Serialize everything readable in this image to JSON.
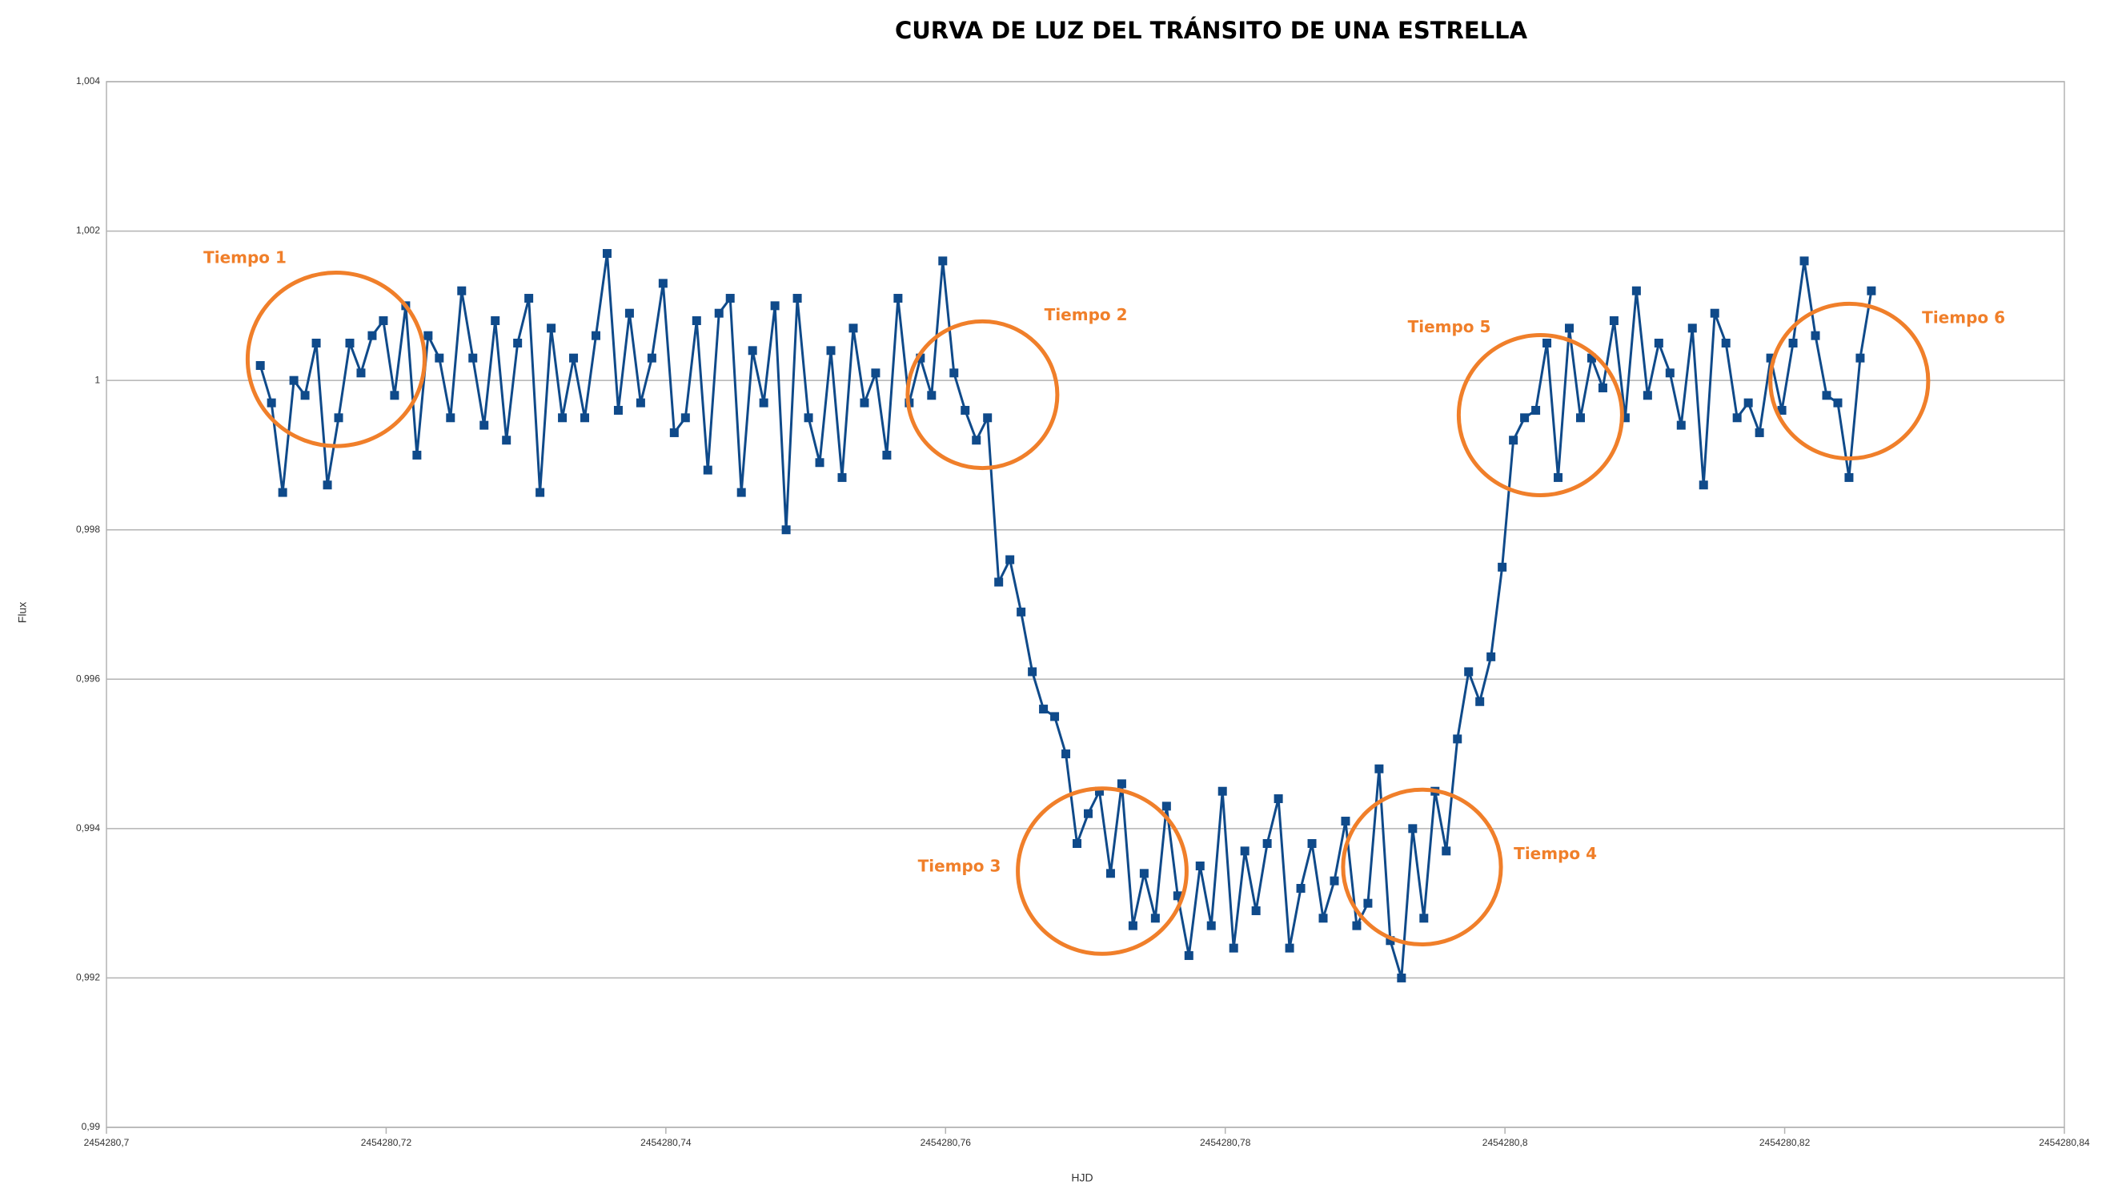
{
  "chart_data": {
    "type": "line",
    "title": "CURVA DE LUZ DEL TRÁNSITO DE UNA ESTRELLA",
    "x_label": "HJD",
    "y_label": "Flux",
    "x": [
      2454280.711,
      2454280.7118,
      2454280.7126,
      2454280.7134,
      2454280.7142,
      2454280.715,
      2454280.7158,
      2454280.7166,
      2454280.7174,
      2454280.7182,
      2454280.719,
      2454280.7198,
      2454280.7206,
      2454280.7214,
      2454280.7222,
      2454280.723,
      2454280.7238,
      2454280.7246,
      2454280.7254,
      2454280.7262,
      2454280.727,
      2454280.7278,
      2454280.7286,
      2454280.7294,
      2454280.7302,
      2454280.731,
      2454280.7318,
      2454280.7326,
      2454280.7334,
      2454280.7342,
      2454280.735,
      2454280.7358,
      2454280.7366,
      2454280.7374,
      2454280.7382,
      2454280.739,
      2454280.7398,
      2454280.7406,
      2454280.7414,
      2454280.7422,
      2454280.743,
      2454280.7438,
      2454280.7446,
      2454280.7454,
      2454280.7462,
      2454280.747,
      2454280.7478,
      2454280.7486,
      2454280.7494,
      2454280.7502,
      2454280.751,
      2454280.7518,
      2454280.7526,
      2454280.7534,
      2454280.7542,
      2454280.755,
      2454280.7558,
      2454280.7566,
      2454280.7574,
      2454280.7582,
      2454280.759,
      2454280.7598,
      2454280.7606,
      2454280.7614,
      2454280.7622,
      2454280.763,
      2454280.7638,
      2454280.7646,
      2454280.7654,
      2454280.7662,
      2454280.767,
      2454280.7678,
      2454280.7686,
      2454280.7694,
      2454280.7702,
      2454280.771,
      2454280.7718,
      2454280.7726,
      2454280.7734,
      2454280.7742,
      2454280.775,
      2454280.7758,
      2454280.7766,
      2454280.7774,
      2454280.7782,
      2454280.779,
      2454280.7798,
      2454280.7806,
      2454280.7814,
      2454280.7822,
      2454280.783,
      2454280.7838,
      2454280.7846,
      2454280.7854,
      2454280.7862,
      2454280.787,
      2454280.7878,
      2454280.7886,
      2454280.7894,
      2454280.7902,
      2454280.791,
      2454280.7918,
      2454280.7926,
      2454280.7934,
      2454280.7942,
      2454280.795,
      2454280.7958,
      2454280.7966,
      2454280.7974,
      2454280.7982,
      2454280.799,
      2454280.7998,
      2454280.8006,
      2454280.8014,
      2454280.8022,
      2454280.803,
      2454280.8038,
      2454280.8046,
      2454280.8054,
      2454280.8062,
      2454280.807,
      2454280.8078,
      2454280.8086,
      2454280.8094,
      2454280.8102,
      2454280.811,
      2454280.8118,
      2454280.8126,
      2454280.8134,
      2454280.8142,
      2454280.815,
      2454280.8158,
      2454280.8166,
      2454280.8174,
      2454280.8182,
      2454280.819,
      2454280.8198,
      2454280.8206,
      2454280.8214,
      2454280.8222,
      2454280.823,
      2454280.8238,
      2454280.8246,
      2454280.8254,
      2454280.8262
    ],
    "series": [
      {
        "color": "#0f4a8a",
        "values": [
          1.0002,
          0.9997,
          0.9985,
          1.0,
          0.9998,
          1.0005,
          0.9986,
          0.9995,
          1.0005,
          1.0001,
          1.0006,
          1.0008,
          0.9998,
          1.001,
          0.999,
          1.0006,
          1.0003,
          0.9995,
          1.0012,
          1.0003,
          0.9994,
          1.0008,
          0.9992,
          1.0005,
          1.0011,
          0.9985,
          1.0007,
          0.9995,
          1.0003,
          0.9995,
          1.0006,
          1.0017,
          0.9996,
          1.0009,
          0.9997,
          1.0003,
          1.0013,
          0.9993,
          0.9995,
          1.0008,
          0.9988,
          1.0009,
          1.0011,
          0.9985,
          1.0004,
          0.9997,
          1.001,
          0.998,
          1.0011,
          0.9995,
          0.9989,
          1.0004,
          0.9987,
          1.0007,
          0.9997,
          1.0001,
          0.999,
          1.0011,
          0.9997,
          1.0003,
          0.9998,
          1.0016,
          1.0001,
          0.9996,
          0.9992,
          0.9995,
          0.9973,
          0.9976,
          0.9969,
          0.9961,
          0.9956,
          0.9955,
          0.995,
          0.9938,
          0.9942,
          0.9945,
          0.9934,
          0.9946,
          0.9927,
          0.9934,
          0.9928,
          0.9943,
          0.9931,
          0.9923,
          0.9935,
          0.9927,
          0.9945,
          0.9924,
          0.9937,
          0.9929,
          0.9938,
          0.9944,
          0.9924,
          0.9932,
          0.9938,
          0.9928,
          0.9933,
          0.9941,
          0.9927,
          0.993,
          0.9948,
          0.9925,
          0.992,
          0.994,
          0.9928,
          0.9945,
          0.9937,
          0.9952,
          0.9961,
          0.9957,
          0.9963,
          0.9975,
          0.9992,
          0.9995,
          0.9996,
          1.0005,
          0.9987,
          1.0007,
          0.9995,
          1.0003,
          0.9999,
          1.0008,
          0.9995,
          1.0012,
          0.9998,
          1.0005,
          1.0001,
          0.9994,
          1.0007,
          0.9986,
          1.0009,
          1.0005,
          0.9995,
          0.9997,
          0.9993,
          1.0003,
          0.9996,
          1.0005,
          1.0016,
          1.0006,
          0.9998,
          0.9997,
          0.9987,
          1.0003,
          1.0012
        ]
      }
    ],
    "xlim": [
      2454280.7,
      2454280.84
    ],
    "xticks": [
      {
        "value": 2454280.7,
        "label": "2454280,7"
      },
      {
        "value": 2454280.72,
        "label": "2454280,72"
      },
      {
        "value": 2454280.74,
        "label": "2454280,74"
      },
      {
        "value": 2454280.76,
        "label": "2454280,76"
      },
      {
        "value": 2454280.78,
        "label": "2454280,78"
      },
      {
        "value": 2454280.8,
        "label": "2454280,8"
      },
      {
        "value": 2454280.82,
        "label": "2454280,82"
      },
      {
        "value": 2454280.84,
        "label": "2454280,84"
      }
    ],
    "ylim": [
      0.99,
      1.004
    ],
    "yticks": [
      {
        "value": 0.99,
        "label": "0,99"
      },
      {
        "value": 0.992,
        "label": "0,992"
      },
      {
        "value": 0.994,
        "label": "0,994"
      },
      {
        "value": 0.996,
        "label": "0,996"
      },
      {
        "value": 0.998,
        "label": "0,998"
      },
      1,
      {
        "value": 1.002,
        "label": "1,002"
      },
      {
        "value": 1.004,
        "label": "1,004"
      }
    ],
    "grid": true,
    "annotations": [
      "Tiempo 1",
      "Tiempo 2",
      "Tiempo 3",
      "Tiempo 4",
      "Tiempo 5",
      "Tiempo 6"
    ],
    "annotation_color": "#f07f2a"
  }
}
